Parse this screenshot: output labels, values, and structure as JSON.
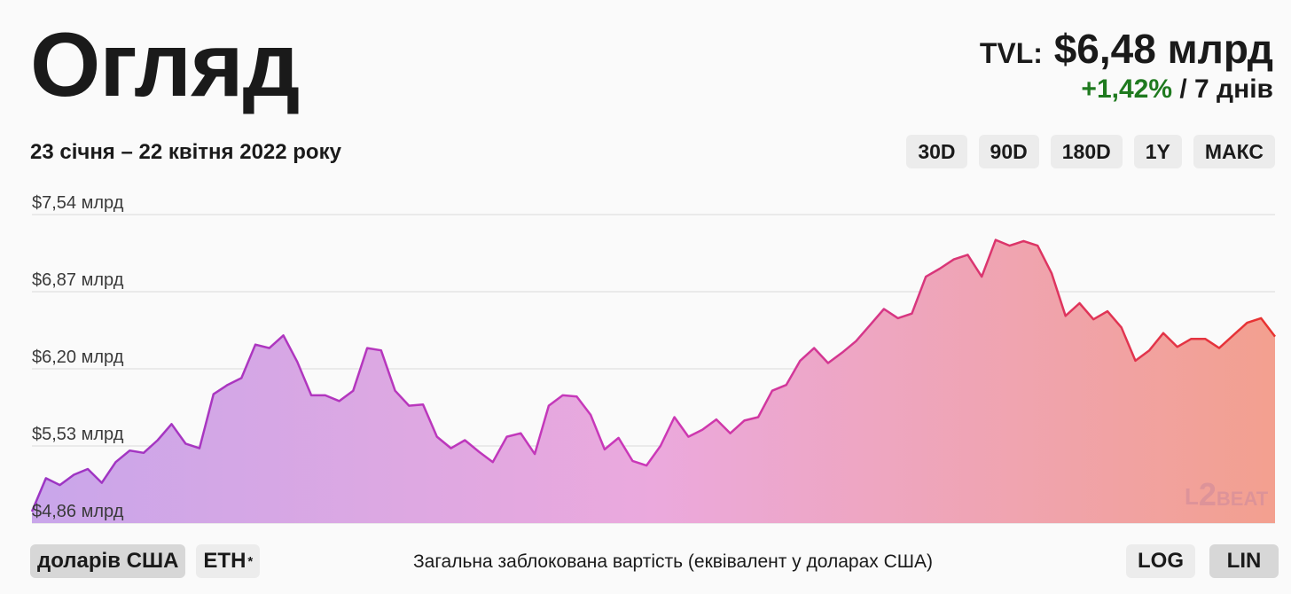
{
  "header": {
    "title": "Огляд",
    "tvl_label": "TVL:",
    "tvl_value": "$6,48 млрд",
    "change_value": "+1,42%",
    "change_period": "/ 7 днів",
    "date_range": "23 січня – 22 квітня 2022 року"
  },
  "range_buttons": [
    "30D",
    "90D",
    "180D",
    "1Y",
    "МАКС"
  ],
  "range_active": "90D",
  "currency_buttons": {
    "usd": "доларів США",
    "eth": "ETH",
    "eth_mark": "*"
  },
  "scale_buttons": {
    "log": "LOG",
    "lin": "LIN"
  },
  "caption": "Загальна заблокована вартість (еквівалент у доларах США)",
  "logo": {
    "l": "L",
    "two": "2",
    "beat": "BEAT"
  },
  "colors": {
    "gradient_start": "#9b35c4",
    "gradient_mid": "#cc38b8",
    "gradient_end": "#e8332f",
    "positive": "#1f7a1f"
  },
  "chart_data": {
    "type": "area",
    "title": "",
    "xlabel": "",
    "ylabel": "",
    "x_range": [
      "2022-01-23",
      "2022-04-22"
    ],
    "y_unit": "млрд $",
    "ylim": [
      4.86,
      7.54
    ],
    "ytick_labels": [
      "$7,54 млрд",
      "$6,87 млрд",
      "$6,20 млрд",
      "$5,53 млрд",
      "$4,86 млрд"
    ],
    "ytick_values": [
      7.54,
      6.87,
      6.2,
      5.53,
      4.86
    ],
    "grid": true,
    "legend": "none",
    "series": [
      {
        "values": [
          4.96,
          5.25,
          5.19,
          5.28,
          5.33,
          5.21,
          5.39,
          5.49,
          5.47,
          5.58,
          5.72,
          5.55,
          5.51,
          5.98,
          6.06,
          6.12,
          6.41,
          6.38,
          6.49,
          6.26,
          5.97,
          5.97,
          5.92,
          6.01,
          6.38,
          6.36,
          6.01,
          5.88,
          5.89,
          5.61,
          5.51,
          5.58,
          5.48,
          5.39,
          5.61,
          5.64,
          5.46,
          5.88,
          5.97,
          5.96,
          5.8,
          5.5,
          5.6,
          5.4,
          5.36,
          5.53,
          5.78,
          5.61,
          5.67,
          5.76,
          5.64,
          5.75,
          5.78,
          6.01,
          6.06,
          6.27,
          6.38,
          6.25,
          6.34,
          6.44,
          6.58,
          6.72,
          6.64,
          6.68,
          7.0,
          7.07,
          7.15,
          7.19,
          7.0,
          7.32,
          7.27,
          7.31,
          7.27,
          7.03,
          6.66,
          6.77,
          6.63,
          6.7,
          6.56,
          6.27,
          6.36,
          6.51,
          6.39,
          6.46,
          6.46,
          6.38,
          6.49,
          6.6,
          6.64,
          6.48
        ]
      }
    ]
  }
}
